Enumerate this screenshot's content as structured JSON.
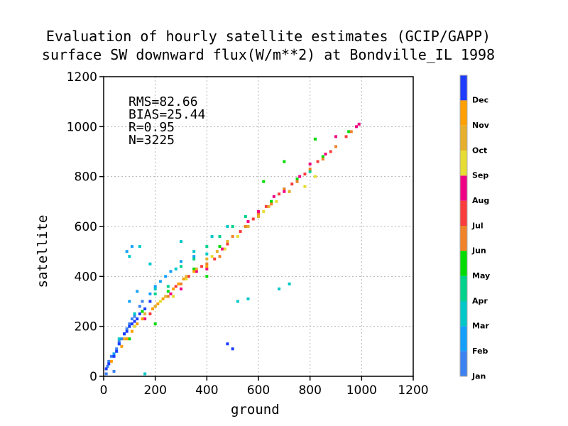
{
  "chart_data": {
    "type": "scatter",
    "title": "Evaluation of hourly satellite estimates (GCIP/GAPP)",
    "subtitle": "surface SW downward flux(W/m**2) at Bondville_IL 1998",
    "xlabel": "ground",
    "ylabel": "satellite",
    "xlim": [
      0,
      1200
    ],
    "ylim": [
      0,
      1200
    ],
    "xticks": [
      0,
      200,
      400,
      600,
      800,
      1000,
      1200
    ],
    "yticks": [
      0,
      200,
      400,
      600,
      800,
      1000,
      1200
    ],
    "grid": true,
    "stats": {
      "rms": "RMS=82.66",
      "bias": "BIAS=25.44",
      "r": "R=0.95",
      "n": "N=3225"
    },
    "colorbar": {
      "placement": "right",
      "months": [
        {
          "label": "Jan",
          "color": "#3c82f0"
        },
        {
          "label": "Feb",
          "color": "#14a0fa"
        },
        {
          "label": "Mar",
          "color": "#00c8c8"
        },
        {
          "label": "Apr",
          "color": "#00d28c"
        },
        {
          "label": "May",
          "color": "#00dc00"
        },
        {
          "label": "Jun",
          "color": "#f08228"
        },
        {
          "label": "Jul",
          "color": "#fa3c3c"
        },
        {
          "label": "Aug",
          "color": "#f00082"
        },
        {
          "label": "Sep",
          "color": "#e6dc32"
        },
        {
          "label": "Oct",
          "color": "#e6af2d"
        },
        {
          "label": "Nov",
          "color": "#ffa000"
        },
        {
          "label": "Dec",
          "color": "#1e3cff"
        }
      ]
    },
    "series": [
      {
        "name": "Jan",
        "values": [
          [
            15,
            40
          ],
          [
            30,
            80
          ],
          [
            50,
            110
          ],
          [
            70,
            150
          ],
          [
            90,
            190
          ],
          [
            110,
            230
          ],
          [
            140,
            280
          ],
          [
            20,
            60
          ],
          [
            60,
            140
          ],
          [
            100,
            210
          ],
          [
            150,
            300
          ],
          [
            40,
            20
          ],
          [
            80,
            170
          ],
          [
            120,
            240
          ],
          [
            10,
            10
          ]
        ]
      },
      {
        "name": "Feb",
        "values": [
          [
            40,
            90
          ],
          [
            80,
            170
          ],
          [
            120,
            250
          ],
          [
            180,
            330
          ],
          [
            220,
            380
          ],
          [
            260,
            420
          ],
          [
            300,
            460
          ],
          [
            100,
            300
          ],
          [
            130,
            340
          ],
          [
            60,
            130
          ],
          [
            200,
            360
          ],
          [
            240,
            400
          ],
          [
            350,
            480
          ],
          [
            90,
            500
          ],
          [
            110,
            520
          ]
        ]
      },
      {
        "name": "Mar",
        "values": [
          [
            60,
            150
          ],
          [
            120,
            250
          ],
          [
            200,
            350
          ],
          [
            280,
            430
          ],
          [
            350,
            500
          ],
          [
            420,
            560
          ],
          [
            480,
            600
          ],
          [
            100,
            480
          ],
          [
            140,
            520
          ],
          [
            180,
            450
          ],
          [
            520,
            300
          ],
          [
            560,
            310
          ],
          [
            680,
            350
          ],
          [
            720,
            370
          ],
          [
            160,
            10
          ],
          [
            400,
            490
          ],
          [
            300,
            540
          ]
        ]
      },
      {
        "name": "Apr",
        "values": [
          [
            100,
            200
          ],
          [
            200,
            330
          ],
          [
            300,
            440
          ],
          [
            400,
            520
          ],
          [
            500,
            600
          ],
          [
            600,
            660
          ],
          [
            700,
            750
          ],
          [
            800,
            820
          ],
          [
            150,
            260
          ],
          [
            250,
            360
          ],
          [
            450,
            560
          ],
          [
            650,
            700
          ],
          [
            550,
            640
          ],
          [
            750,
            780
          ],
          [
            350,
            470
          ]
        ]
      },
      {
        "name": "May",
        "values": [
          [
            150,
            260
          ],
          [
            250,
            340
          ],
          [
            350,
            430
          ],
          [
            450,
            520
          ],
          [
            550,
            600
          ],
          [
            650,
            700
          ],
          [
            750,
            790
          ],
          [
            850,
            880
          ],
          [
            950,
            980
          ],
          [
            100,
            150
          ],
          [
            620,
            780
          ],
          [
            700,
            860
          ],
          [
            820,
            950
          ],
          [
            200,
            210
          ],
          [
            400,
            400
          ],
          [
            900,
            920
          ]
        ]
      },
      {
        "name": "Jun",
        "values": [
          [
            200,
            280
          ],
          [
            300,
            370
          ],
          [
            400,
            450
          ],
          [
            500,
            560
          ],
          [
            600,
            650
          ],
          [
            700,
            750
          ],
          [
            800,
            830
          ],
          [
            900,
            920
          ],
          [
            960,
            980
          ],
          [
            250,
            320
          ],
          [
            450,
            480
          ],
          [
            650,
            690
          ],
          [
            850,
            870
          ],
          [
            550,
            600
          ],
          [
            750,
            780
          ]
        ]
      },
      {
        "name": "Jul",
        "values": [
          [
            180,
            250
          ],
          [
            280,
            360
          ],
          [
            380,
            440
          ],
          [
            480,
            530
          ],
          [
            580,
            630
          ],
          [
            680,
            730
          ],
          [
            780,
            810
          ],
          [
            880,
            900
          ],
          [
            940,
            960
          ],
          [
            330,
            400
          ],
          [
            530,
            580
          ],
          [
            730,
            770
          ],
          [
            830,
            860
          ],
          [
            430,
            470
          ],
          [
            630,
            680
          ]
        ]
      },
      {
        "name": "Aug",
        "values": [
          [
            160,
            230
          ],
          [
            260,
            330
          ],
          [
            360,
            420
          ],
          [
            460,
            510
          ],
          [
            560,
            620
          ],
          [
            660,
            720
          ],
          [
            760,
            800
          ],
          [
            860,
            890
          ],
          [
            990,
            1010
          ],
          [
            900,
            960
          ],
          [
            800,
            850
          ],
          [
            700,
            740
          ],
          [
            600,
            660
          ],
          [
            400,
            430
          ],
          [
            300,
            350
          ],
          [
            980,
            1000
          ]
        ]
      },
      {
        "name": "Sep",
        "values": [
          [
            120,
            200
          ],
          [
            220,
            300
          ],
          [
            320,
            390
          ],
          [
            420,
            480
          ],
          [
            520,
            560
          ],
          [
            620,
            660
          ],
          [
            720,
            740
          ],
          [
            780,
            760
          ],
          [
            820,
            800
          ],
          [
            270,
            320
          ],
          [
            470,
            510
          ],
          [
            670,
            700
          ]
        ]
      },
      {
        "name": "Oct",
        "values": [
          [
            80,
            150
          ],
          [
            160,
            250
          ],
          [
            240,
            320
          ],
          [
            320,
            400
          ],
          [
            400,
            470
          ],
          [
            480,
            540
          ],
          [
            560,
            600
          ],
          [
            640,
            680
          ],
          [
            720,
            740
          ],
          [
            200,
            280
          ],
          [
            360,
            430
          ],
          [
            440,
            500
          ],
          [
            600,
            640
          ]
        ]
      },
      {
        "name": "Nov",
        "values": [
          [
            30,
            60
          ],
          [
            70,
            120
          ],
          [
            110,
            180
          ],
          [
            150,
            230
          ],
          [
            190,
            270
          ],
          [
            230,
            310
          ],
          [
            270,
            350
          ],
          [
            310,
            390
          ],
          [
            350,
            420
          ],
          [
            400,
            440
          ],
          [
            130,
            210
          ],
          [
            210,
            290
          ],
          [
            290,
            370
          ],
          [
            90,
            150
          ]
        ]
      },
      {
        "name": "Dec",
        "values": [
          [
            10,
            30
          ],
          [
            40,
            80
          ],
          [
            60,
            130
          ],
          [
            80,
            170
          ],
          [
            100,
            200
          ],
          [
            120,
            220
          ],
          [
            140,
            250
          ],
          [
            160,
            270
          ],
          [
            180,
            300
          ],
          [
            50,
            100
          ],
          [
            90,
            180
          ],
          [
            130,
            230
          ],
          [
            110,
            210
          ],
          [
            480,
            130
          ],
          [
            500,
            110
          ],
          [
            20,
            50
          ]
        ]
      }
    ]
  }
}
